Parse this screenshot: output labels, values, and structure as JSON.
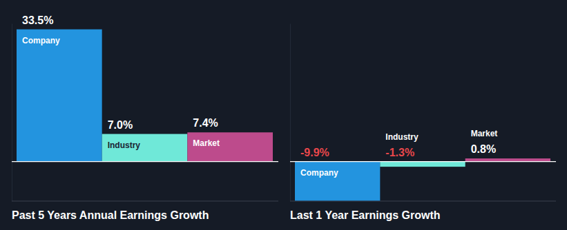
{
  "chart_data": [
    {
      "type": "bar",
      "title": "Past 5 Years Annual Earnings Growth",
      "categories": [
        "Company",
        "Industry",
        "Market"
      ],
      "values": [
        33.5,
        7.0,
        7.4
      ],
      "value_labels": [
        "33.5%",
        "7.0%",
        "7.4%"
      ],
      "colors": [
        "#2394df",
        "#6fe8d8",
        "#bd4b8c"
      ],
      "ylim": [
        -10,
        35
      ],
      "yticks": [
        0
      ],
      "data_labels": true,
      "tick_labels": false
    },
    {
      "type": "bar",
      "title": "Last 1 Year Earnings Growth",
      "categories": [
        "Company",
        "Industry",
        "Market"
      ],
      "values": [
        -9.9,
        -1.3,
        0.8
      ],
      "value_labels": [
        "-9.9%",
        "-1.3%",
        "0.8%"
      ],
      "colors": [
        "#2394df",
        "#6fe8d8",
        "#bd4b8c"
      ],
      "ylim": [
        -10,
        35
      ],
      "yticks": [
        0
      ],
      "data_labels": true,
      "tick_labels": false
    }
  ]
}
